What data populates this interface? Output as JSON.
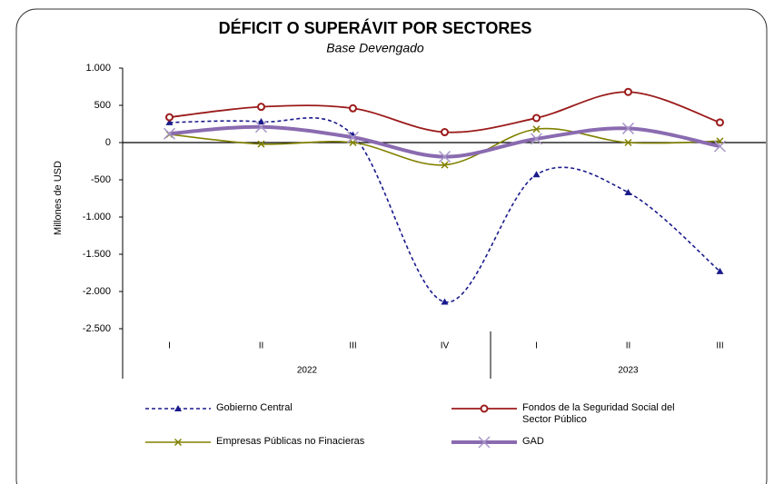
{
  "chart_data": {
    "type": "line",
    "title": "DÉFICIT O SUPERÁVIT POR SECTORES",
    "subtitle": "Base Devengado",
    "y_label": "Millones de USD",
    "categories": [
      "I",
      "II",
      "III",
      "IV",
      "I",
      "II",
      "III"
    ],
    "category_groups": [
      "2022",
      "2022",
      "2022",
      "2022",
      "2023",
      "2023",
      "2023"
    ],
    "ylim": [
      -2500,
      1000
    ],
    "yticks": [
      {
        "value": 1000,
        "label": "1.000"
      },
      500,
      0,
      -500,
      {
        "value": -1000,
        "label": "-1.000"
      },
      {
        "value": -1500,
        "label": "-1.500"
      },
      {
        "value": -2000,
        "label": "-2.000"
      },
      {
        "value": -2500,
        "label": "-2.500"
      }
    ],
    "series": [
      {
        "name": "Gobierno Central",
        "color": "#1a1a8c",
        "values": [
          270,
          280,
          100,
          -2140,
          -430,
          -670,
          -1730
        ]
      },
      {
        "name": "Fondos de la Seguridad Social del Sector Público",
        "color": "#9b1b1b",
        "values": [
          340,
          480,
          460,
          140,
          330,
          680,
          270
        ]
      },
      {
        "name": "Empresas Públicas no Finacieras",
        "color": "#808000",
        "values": [
          110,
          -20,
          0,
          -300,
          180,
          0,
          20
        ]
      },
      {
        "name": "GAD",
        "color": "#8a6bb0",
        "values": [
          120,
          210,
          70,
          -190,
          50,
          190,
          -50
        ]
      }
    ]
  }
}
